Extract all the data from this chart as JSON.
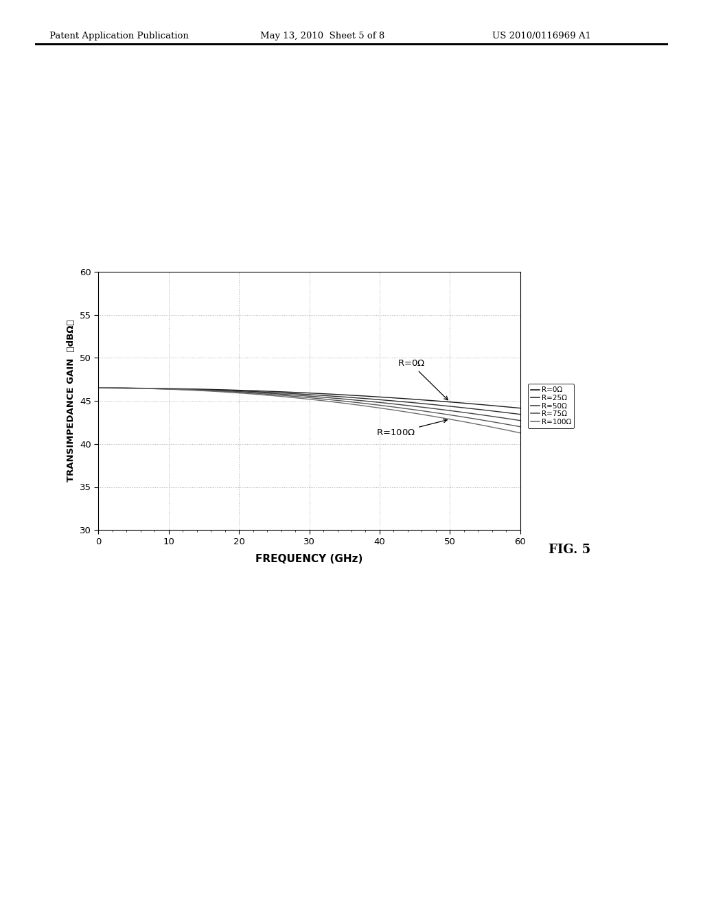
{
  "title_left": "Patent Application Publication",
  "title_mid": "May 13, 2010  Sheet 5 of 8",
  "title_right": "US 2010/0116969 A1",
  "fig_label": "FIG. 5",
  "xlabel": "FREQUENCY (GHz)",
  "ylabel": "TRANSIMPEDANCE GAIN  （dBΩ）",
  "xlim": [
    0,
    60
  ],
  "ylim": [
    30,
    60
  ],
  "xticks": [
    0,
    10,
    20,
    30,
    40,
    50,
    60
  ],
  "yticks": [
    30,
    35,
    40,
    45,
    50,
    55,
    60
  ],
  "R_values": [
    0,
    25,
    50,
    75,
    100
  ],
  "gain0": 46.5,
  "base_rolloff": 0.00065,
  "extra_rolloff_per_ohm": 8e-06,
  "curve_colors": [
    "#1a1a1a",
    "#2e2e2e",
    "#424242",
    "#585858",
    "#6e6e6e"
  ],
  "legend_labels": [
    "R=0Ω",
    "R=25Ω",
    "R=50Ω",
    "R=75Ω",
    "R=100Ω"
  ],
  "background_color": "#ffffff",
  "grid_color": "#aaaaaa",
  "grid_style": ":"
}
